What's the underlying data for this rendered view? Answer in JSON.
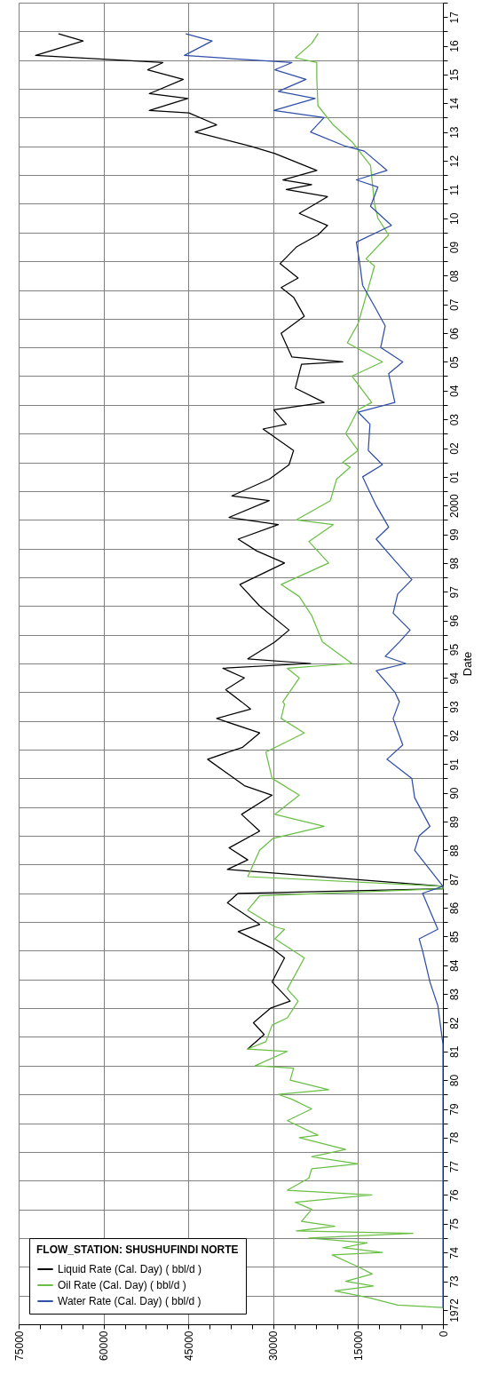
{
  "chart_data": {
    "type": "line",
    "ylabel": "Date",
    "legend_title": "FLOW_STATION: SHUSHUFINDI NORTE",
    "legend": "bottom left",
    "grid": true,
    "line_style": "solid",
    "orientation": "horizontal",
    "ylim": [
      "1972-01-01",
      "2018-01-01"
    ],
    "xlim": [
      75000,
      0
    ],
    "xticks": [
      0,
      {
        "value": 3750,
        "label": null
      },
      {
        "value": 7500,
        "label": null
      },
      {
        "value": 11250,
        "label": null
      },
      15000,
      {
        "value": 18750,
        "label": null
      },
      {
        "value": 22500,
        "label": null
      },
      {
        "value": 26250,
        "label": null
      },
      30000,
      {
        "value": 33750,
        "label": null
      },
      {
        "value": 37500,
        "label": null
      },
      {
        "value": 41250,
        "label": null
      },
      45000,
      {
        "value": 48750,
        "label": null
      },
      {
        "value": 52500,
        "label": null
      },
      {
        "value": 56250,
        "label": null
      },
      60000,
      {
        "value": 63750,
        "label": null
      },
      {
        "value": 67500,
        "label": null
      },
      {
        "value": 71250,
        "label": null
      },
      75000
    ],
    "yticks": [
      {
        "value": "1972-01-01",
        "label": null
      },
      {
        "value": "1972-07-01",
        "label": "1972"
      },
      {
        "value": "1973-01-01",
        "label": null
      },
      {
        "value": "1973-07-01",
        "label": "73"
      },
      {
        "value": "1974-01-01",
        "label": null
      },
      {
        "value": "1974-07-01",
        "label": "74"
      },
      {
        "value": "1975-01-01",
        "label": null
      },
      {
        "value": "1975-07-01",
        "label": "75"
      },
      {
        "value": "1976-01-01",
        "label": null
      },
      {
        "value": "1976-07-01",
        "label": "76"
      },
      {
        "value": "1977-01-01",
        "label": null
      },
      {
        "value": "1977-07-01",
        "label": "77"
      },
      {
        "value": "1978-01-01",
        "label": null
      },
      {
        "value": "1978-07-01",
        "label": "78"
      },
      {
        "value": "1979-01-01",
        "label": null
      },
      {
        "value": "1979-07-01",
        "label": "79"
      },
      {
        "value": "1980-01-01",
        "label": null
      },
      {
        "value": "1980-07-01",
        "label": "80"
      },
      {
        "value": "1981-01-01",
        "label": null
      },
      {
        "value": "1981-07-01",
        "label": "81"
      },
      {
        "value": "1982-01-01",
        "label": null
      },
      {
        "value": "1982-07-01",
        "label": "82"
      },
      {
        "value": "1983-01-01",
        "label": null
      },
      {
        "value": "1983-07-01",
        "label": "83"
      },
      {
        "value": "1984-01-01",
        "label": null
      },
      {
        "value": "1984-07-01",
        "label": "84"
      },
      {
        "value": "1985-01-01",
        "label": null
      },
      {
        "value": "1985-07-01",
        "label": "85"
      },
      {
        "value": "1986-01-01",
        "label": null
      },
      {
        "value": "1986-07-01",
        "label": "86"
      },
      {
        "value": "1987-01-01",
        "label": null
      },
      {
        "value": "1987-07-01",
        "label": "87"
      },
      {
        "value": "1988-01-01",
        "label": null
      },
      {
        "value": "1988-07-01",
        "label": "88"
      },
      {
        "value": "1989-01-01",
        "label": null
      },
      {
        "value": "1989-07-01",
        "label": "89"
      },
      {
        "value": "1990-01-01",
        "label": null
      },
      {
        "value": "1990-07-01",
        "label": "90"
      },
      {
        "value": "1991-01-01",
        "label": null
      },
      {
        "value": "1991-07-01",
        "label": "91"
      },
      {
        "value": "1992-01-01",
        "label": null
      },
      {
        "value": "1992-07-01",
        "label": "92"
      },
      {
        "value": "1993-01-01",
        "label": null
      },
      {
        "value": "1993-07-01",
        "label": "93"
      },
      {
        "value": "1994-01-01",
        "label": null
      },
      {
        "value": "1994-07-01",
        "label": "94"
      },
      {
        "value": "1995-01-01",
        "label": null
      },
      {
        "value": "1995-07-01",
        "label": "95"
      },
      {
        "value": "1996-01-01",
        "label": null
      },
      {
        "value": "1996-07-01",
        "label": "96"
      },
      {
        "value": "1997-01-01",
        "label": null
      },
      {
        "value": "1997-07-01",
        "label": "97"
      },
      {
        "value": "1998-01-01",
        "label": null
      },
      {
        "value": "1998-07-01",
        "label": "98"
      },
      {
        "value": "1999-01-01",
        "label": null
      },
      {
        "value": "1999-07-01",
        "label": "99"
      },
      {
        "value": "2000-01-01",
        "label": null
      },
      {
        "value": "2000-07-01",
        "label": "2000"
      },
      {
        "value": "2001-01-01",
        "label": null
      },
      {
        "value": "2001-07-01",
        "label": "01"
      },
      {
        "value": "2002-01-01",
        "label": null
      },
      {
        "value": "2002-07-01",
        "label": "02"
      },
      {
        "value": "2003-01-01",
        "label": null
      },
      {
        "value": "2003-07-01",
        "label": "03"
      },
      {
        "value": "2004-01-01",
        "label": null
      },
      {
        "value": "2004-07-01",
        "label": "04"
      },
      {
        "value": "2005-01-01",
        "label": null
      },
      {
        "value": "2005-07-01",
        "label": "05"
      },
      {
        "value": "2006-01-01",
        "label": null
      },
      {
        "value": "2006-07-01",
        "label": "06"
      },
      {
        "value": "2007-01-01",
        "label": null
      },
      {
        "value": "2007-07-01",
        "label": "07"
      },
      {
        "value": "2008-01-01",
        "label": null
      },
      {
        "value": "2008-07-01",
        "label": "08"
      },
      {
        "value": "2009-01-01",
        "label": null
      },
      {
        "value": "2009-07-01",
        "label": "09"
      },
      {
        "value": "2010-01-01",
        "label": null
      },
      {
        "value": "2010-07-01",
        "label": "10"
      },
      {
        "value": "2011-01-01",
        "label": null
      },
      {
        "value": "2011-07-01",
        "label": "11"
      },
      {
        "value": "2012-01-01",
        "label": null
      },
      {
        "value": "2012-07-01",
        "label": "12"
      },
      {
        "value": "2013-01-01",
        "label": null
      },
      {
        "value": "2013-07-01",
        "label": "13"
      },
      {
        "value": "2014-01-01",
        "label": null
      },
      {
        "value": "2014-07-01",
        "label": "14"
      },
      {
        "value": "2015-01-01",
        "label": null
      },
      {
        "value": "2015-07-01",
        "label": "15"
      },
      {
        "value": "2016-01-01",
        "label": null
      },
      {
        "value": "2016-07-01",
        "label": "16"
      },
      {
        "value": "2017-01-01",
        "label": null
      },
      {
        "value": "2017-07-01",
        "label": "17"
      },
      {
        "value": "2018-01-01",
        "label": null
      }
    ],
    "series": [
      {
        "name": "Liquid Rate (Cal. Day) ( bbl/d )",
        "color": "#000000",
        "x": [
          "1981-08",
          "1982-02",
          "1982-07",
          "1983-01",
          "1983-04",
          "1983-12",
          "1984-10",
          "1985-02",
          "1985-09",
          "1985-12",
          "1986-09",
          "1987-01",
          "1987-03",
          "1987-04",
          "1987-11",
          "1988-03",
          "1988-08",
          "1989-03",
          "1989-10",
          "1990-06",
          "1990-10",
          "1991-09",
          "1992-02",
          "1992-08",
          "1993-02",
          "1993-06",
          "1993-09",
          "1994-02",
          "1994-07",
          "1994-11",
          "1995-01",
          "1995-03",
          "1995-10",
          "1996-03",
          "1997-01",
          "1997-10",
          "1998-07",
          "1998-12",
          "1999-05",
          "1999-11",
          "2000-02",
          "2000-09",
          "2000-11",
          "2001-06",
          "2001-12",
          "2002-06",
          "2003-03",
          "2003-05",
          "2003-11",
          "2004-02",
          "2004-08",
          "2005-06",
          "2005-07",
          "2005-09",
          "2006-07",
          "2007-02",
          "2007-10",
          "2008-02",
          "2008-06",
          "2008-12",
          "2009-07",
          "2009-12",
          "2010-04",
          "2010-09",
          "2011-04",
          "2011-07",
          "2011-09",
          "2011-11",
          "2012-03",
          "2012-10",
          "2013-01",
          "2013-07",
          "2013-10",
          "2014-03",
          "2014-04",
          "2014-09",
          "2014-11",
          "2015-05",
          "2015-09",
          "2015-12",
          "2016-03",
          "2016-09",
          "2016-12"
        ],
        "values": [
          34500,
          31600,
          33500,
          30500,
          27000,
          30200,
          28000,
          30200,
          36200,
          32400,
          38100,
          36200,
          0,
          0,
          38100,
          34500,
          37800,
          32400,
          35600,
          30200,
          35100,
          41600,
          35400,
          32400,
          40000,
          34000,
          35600,
          38400,
          35100,
          38900,
          23400,
          34500,
          29700,
          27200,
          32400,
          35900,
          28000,
          32900,
          36200,
          29100,
          37800,
          30700,
          37300,
          30700,
          27200,
          26400,
          31800,
          27700,
          29900,
          21000,
          26100,
          25000,
          17700,
          26700,
          28600,
          24500,
          26400,
          28600,
          25600,
          28800,
          25900,
          22100,
          20400,
          25400,
          20400,
          27700,
          23200,
          28300,
          22300,
          29700,
          34000,
          43800,
          40000,
          44900,
          51900,
          45100,
          51900,
          45900,
          52200,
          49500,
          72000,
          63600,
          67900
        ]
      },
      {
        "name": "Oil Rate (Cal. Day) ( bbl/d )",
        "color": "#6abf45",
        "x": [
          "1972-08",
          "1972-09",
          "1972-12",
          "1973-03",
          "1973-05",
          "1973-07",
          "1973-10",
          "1974-01",
          "1974-06",
          "1974-07",
          "1974-09",
          "1974-11",
          "1975-01",
          "1975-03",
          "1975-04",
          "1975-06",
          "1975-08",
          "1976-01",
          "1976-04",
          "1976-07",
          "1976-09",
          "1977-02",
          "1977-06",
          "1977-08",
          "1977-11",
          "1978-02",
          "1978-07",
          "1978-08",
          "1979-02",
          "1979-07",
          "1979-11",
          "1980-01",
          "1980-03",
          "1980-07",
          "1980-12",
          "1981-01",
          "1981-07",
          "1981-08",
          "1981-11",
          "1982-06",
          "1982-09",
          "1983-04",
          "1983-09",
          "1984-10",
          "1985-06",
          "1985-10",
          "1985-11",
          "1986-06",
          "1986-12",
          "1987-03",
          "1987-04",
          "1987-08",
          "1988-07",
          "1988-12",
          "1989-05",
          "1989-10",
          "1990-06",
          "1991-01",
          "1991-12",
          "1992-08",
          "1993-02",
          "1993-08",
          "1993-09",
          "1994-07",
          "1994-11",
          "1995-01",
          "1995-10",
          "1996-09",
          "1997-05",
          "1997-10",
          "1998-07",
          "1999-04",
          "1999-11",
          "2000-01",
          "2000-09",
          "2001-06",
          "2001-11",
          "2002-01",
          "2002-06",
          "2003-01",
          "2003-11",
          "2004-02",
          "2005-01",
          "2005-07",
          "2006-03",
          "2006-11",
          "2007-08",
          "2008-11",
          "2009-02",
          "2009-12",
          "2010-07",
          "2011-01",
          "2012-05",
          "2013-03",
          "2013-10",
          "2014-06",
          "2015-06",
          "2015-12",
          "2016-02",
          "2016-08",
          "2016-12"
        ],
        "values": [
          0,
          8000,
          12900,
          19100,
          12300,
          17200,
          12500,
          15000,
          19600,
          10700,
          17700,
          13400,
          23700,
          5300,
          25900,
          19100,
          25000,
          23200,
          26100,
          12600,
          27500,
          23700,
          23200,
          15000,
          23200,
          17200,
          25400,
          22100,
          27500,
          23200,
          26700,
          29100,
          20200,
          27000,
          26400,
          33200,
          27500,
          34500,
          31300,
          30200,
          27500,
          25600,
          27500,
          24500,
          29700,
          28000,
          29700,
          34500,
          32400,
          0,
          0,
          34500,
          32400,
          30000,
          21000,
          29700,
          25400,
          30200,
          31300,
          24500,
          28600,
          28000,
          28300,
          25400,
          27500,
          16100,
          21300,
          23200,
          25400,
          28600,
          20200,
          23700,
          19400,
          25900,
          19900,
          18800,
          16400,
          17700,
          15000,
          17200,
          15000,
          12600,
          16100,
          10700,
          16900,
          15000,
          13900,
          12100,
          13600,
          9600,
          11500,
          12100,
          12800,
          16100,
          19400,
          22100,
          22300,
          22300,
          26100,
          23200,
          22100
        ]
      },
      {
        "name": "Water Rate (Cal. Day) ( bbl/d )",
        "color": "#2f4fa8",
        "x": [
          "1972-08",
          "1981-10",
          "1983-02",
          "1983-12",
          "1985-01",
          "1985-06",
          "1985-10",
          "1987-01",
          "1987-04",
          "1987-10",
          "1988-07",
          "1989-01",
          "1989-05",
          "1990-05",
          "1991-01",
          "1991-09",
          "1992-03",
          "1993-02",
          "1993-09",
          "1994-01",
          "1994-10",
          "1995-01",
          "1995-04",
          "1995-10",
          "1996-03",
          "1996-10",
          "1997-06",
          "1997-12",
          "1998-08",
          "1999-05",
          "1999-10",
          "2000-07",
          "2001-03",
          "2001-07",
          "2001-12",
          "2002-06",
          "2003-05",
          "2003-10",
          "2004-02",
          "2005-02",
          "2005-07",
          "2006-01",
          "2006-10",
          "2007-05",
          "2008-03",
          "2008-12",
          "2009-09",
          "2010-04",
          "2010-12",
          "2011-08",
          "2011-11",
          "2012-03",
          "2012-11",
          "2013-01",
          "2013-07",
          "2014-01",
          "2014-04",
          "2014-09",
          "2014-12",
          "2015-05",
          "2015-09",
          "2015-12",
          "2016-03",
          "2016-09",
          "2016-12"
        ],
        "values": [
          0,
          0,
          900,
          2300,
          3600,
          4200,
          900,
          3600,
          0,
          2000,
          5000,
          4200,
          2300,
          5000,
          5500,
          9900,
          7100,
          8800,
          7700,
          8500,
          11800,
          6600,
          10200,
          7700,
          5800,
          8800,
          8000,
          5500,
          8500,
          11800,
          9600,
          11800,
          13400,
          14200,
          10700,
          13200,
          12900,
          15000,
          8500,
          9600,
          7100,
          11000,
          10200,
          11800,
          14200,
          14700,
          15300,
          9100,
          12800,
          11500,
          15300,
          9900,
          13900,
          17200,
          23400,
          21000,
          29900,
          22600,
          29100,
          24200,
          29700,
          26700,
          45700,
          40800,
          45400
        ]
      }
    ]
  }
}
